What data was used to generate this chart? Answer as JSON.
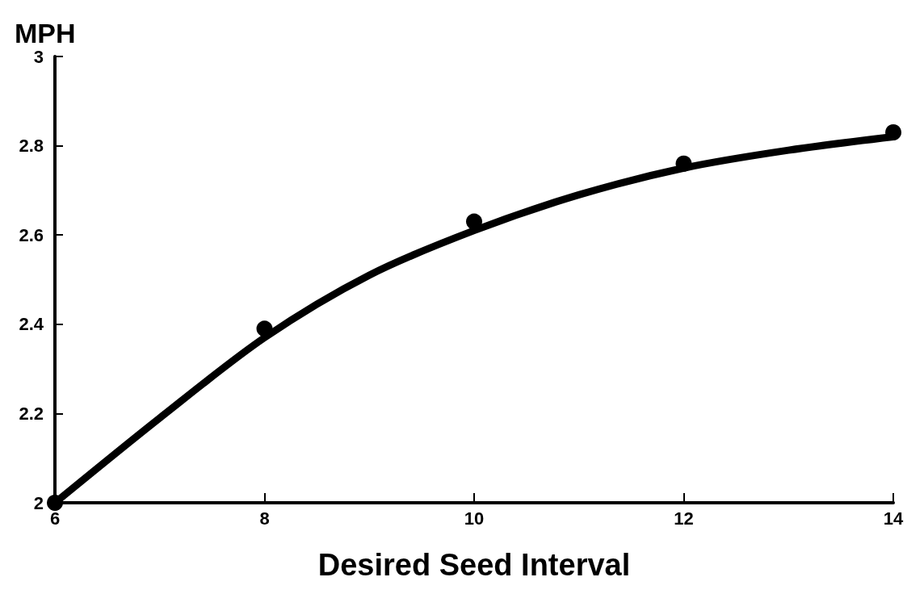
{
  "chart_data": {
    "type": "scatter",
    "xlabel": "Desired Seed Interval",
    "ylabel": "MPH",
    "series": [
      {
        "color": "#000000",
        "marker": "circle",
        "x": [
          6,
          8,
          10,
          12,
          14
        ],
        "values": [
          2.0,
          2.39,
          2.63,
          2.76,
          2.83
        ]
      },
      {
        "type": "line",
        "color": "#000000",
        "marker": "none",
        "line_style": "solid",
        "x": [
          6,
          7,
          8,
          9,
          10,
          11,
          12,
          13,
          14
        ],
        "values": [
          2.0,
          2.19,
          2.37,
          2.51,
          2.61,
          2.69,
          2.75,
          2.79,
          2.82
        ]
      }
    ],
    "xlim": [
      6,
      14
    ],
    "xticks": [
      6,
      8,
      10,
      12,
      14
    ],
    "ylim": [
      2,
      3
    ],
    "yticks": [
      2,
      2.2,
      2.4,
      2.6,
      2.8,
      3
    ],
    "grid": false
  }
}
